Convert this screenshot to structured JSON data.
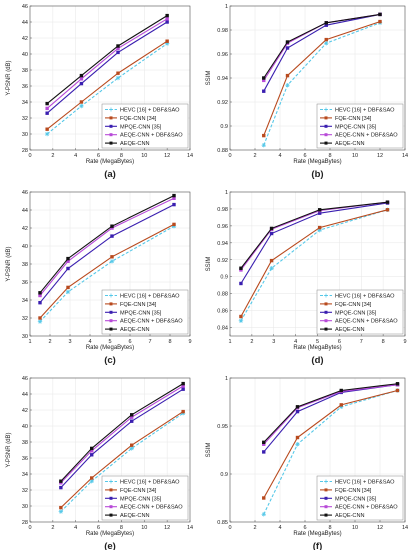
{
  "legend": [
    "HEVC [16] + DBF&SAO",
    "FQE-CNN [34]",
    "MPQE-CNN [35]",
    "AEQE-CNN + DBF&SAO",
    "AEQE-CNN"
  ],
  "series_colors": [
    "#55c8e8",
    "#b84a1e",
    "#3a1fb0",
    "#b84ad8",
    "#111111"
  ],
  "series_styles": [
    "dashed",
    "solid",
    "solid",
    "solid",
    "solid"
  ],
  "series_markers": [
    "star",
    "square",
    "square",
    "square",
    "square"
  ],
  "chart_data": [
    {
      "id": "a",
      "panel_label": "(a)",
      "type": "line",
      "xlabel": "Rate (MegaBytes)",
      "ylabel": "Y-PSNR (dB)",
      "xlim": [
        0,
        14
      ],
      "ylim": [
        28,
        46
      ],
      "xticks": [
        0,
        2,
        4,
        6,
        8,
        10,
        12,
        14
      ],
      "yticks": [
        28,
        30,
        32,
        34,
        36,
        38,
        40,
        42,
        44,
        46
      ],
      "grid": true,
      "legend_position": "bottom-right",
      "series": [
        {
          "x": [
            1.5,
            4.5,
            7.7,
            12.0
          ],
          "y": [
            30.0,
            33.5,
            37.0,
            41.3
          ]
        },
        {
          "x": [
            1.5,
            4.5,
            7.7,
            12.0
          ],
          "y": [
            30.6,
            34.0,
            37.6,
            41.6
          ]
        },
        {
          "x": [
            1.5,
            4.5,
            7.7,
            12.0
          ],
          "y": [
            32.6,
            36.3,
            40.2,
            44.0
          ]
        },
        {
          "x": [
            1.5,
            4.5,
            7.7,
            12.0
          ],
          "y": [
            33.2,
            36.9,
            40.7,
            44.4
          ]
        },
        {
          "x": [
            1.5,
            4.5,
            7.7,
            12.0
          ],
          "y": [
            33.8,
            37.3,
            41.0,
            44.8
          ]
        }
      ]
    },
    {
      "id": "b",
      "panel_label": "(b)",
      "type": "line",
      "xlabel": "Rate (MegaBytes)",
      "ylabel": "SSIM",
      "xlim": [
        0,
        14
      ],
      "ylim": [
        0.88,
        1.0
      ],
      "xticks": [
        0,
        2,
        4,
        6,
        8,
        10,
        12,
        14
      ],
      "yticks": [
        0.88,
        0.9,
        0.92,
        0.94,
        0.96,
        0.98,
        1.0
      ],
      "ytick_labels": [
        "0.88",
        "0.9",
        "0.92",
        "0.94",
        "0.96",
        "0.98",
        "1"
      ],
      "grid": true,
      "legend_position": "bottom-right",
      "series": [
        {
          "x": [
            2.7,
            4.6,
            7.7,
            12.0
          ],
          "y": [
            0.884,
            0.934,
            0.969,
            0.986
          ]
        },
        {
          "x": [
            2.7,
            4.6,
            7.7,
            12.0
          ],
          "y": [
            0.892,
            0.942,
            0.972,
            0.987
          ]
        },
        {
          "x": [
            2.7,
            4.6,
            7.7,
            12.0
          ],
          "y": [
            0.929,
            0.965,
            0.984,
            0.993
          ]
        },
        {
          "x": [
            2.7,
            4.6,
            7.7,
            12.0
          ],
          "y": [
            0.938,
            0.969,
            0.986,
            0.993
          ]
        },
        {
          "x": [
            2.7,
            4.6,
            7.7,
            12.0
          ],
          "y": [
            0.94,
            0.97,
            0.986,
            0.993
          ]
        }
      ]
    },
    {
      "id": "c",
      "panel_label": "(c)",
      "type": "line",
      "xlabel": "Rate (MegaBytes)",
      "ylabel": "Y-PSNR (dB)",
      "xlim": [
        1,
        9
      ],
      "ylim": [
        30,
        46
      ],
      "xticks": [
        1,
        2,
        3,
        4,
        5,
        6,
        7,
        8,
        9
      ],
      "yticks": [
        30,
        32,
        34,
        36,
        38,
        40,
        42,
        44,
        46
      ],
      "grid": true,
      "legend_position": "bottom-right",
      "series": [
        {
          "x": [
            1.5,
            2.9,
            5.1,
            8.2
          ],
          "y": [
            31.6,
            34.9,
            38.3,
            42.2
          ]
        },
        {
          "x": [
            1.5,
            2.9,
            5.1,
            8.2
          ],
          "y": [
            32.0,
            35.4,
            38.8,
            42.4
          ]
        },
        {
          "x": [
            1.5,
            2.9,
            5.1,
            8.2
          ],
          "y": [
            33.7,
            37.5,
            41.1,
            44.6
          ]
        },
        {
          "x": [
            1.5,
            2.9,
            5.1,
            8.2
          ],
          "y": [
            34.5,
            38.3,
            42.0,
            45.3
          ]
        },
        {
          "x": [
            1.5,
            2.9,
            5.1,
            8.2
          ],
          "y": [
            34.8,
            38.6,
            42.2,
            45.6
          ]
        }
      ]
    },
    {
      "id": "d",
      "panel_label": "(d)",
      "type": "line",
      "xlabel": "Rate (MegaBytes)",
      "ylabel": "SSIM",
      "xlim": [
        1,
        9
      ],
      "ylim": [
        0.83,
        1.0
      ],
      "xticks": [
        1,
        2,
        3,
        4,
        5,
        6,
        7,
        8,
        9
      ],
      "yticks": [
        0.84,
        0.86,
        0.88,
        0.9,
        0.92,
        0.94,
        0.96,
        0.98,
        1.0
      ],
      "ytick_labels": [
        "0.84",
        "0.86",
        "0.88",
        "0.9",
        "0.92",
        "0.94",
        "0.96",
        "0.98",
        "1"
      ],
      "grid": true,
      "legend_position": "bottom-right",
      "series": [
        {
          "x": [
            1.5,
            2.9,
            5.1,
            8.2
          ],
          "y": [
            0.848,
            0.91,
            0.955,
            0.979
          ]
        },
        {
          "x": [
            1.5,
            2.9,
            5.1,
            8.2
          ],
          "y": [
            0.853,
            0.919,
            0.958,
            0.979
          ]
        },
        {
          "x": [
            1.5,
            2.9,
            5.1,
            8.2
          ],
          "y": [
            0.892,
            0.951,
            0.975,
            0.987
          ]
        },
        {
          "x": [
            1.5,
            2.9,
            5.1,
            8.2
          ],
          "y": [
            0.908,
            0.956,
            0.978,
            0.988
          ]
        },
        {
          "x": [
            1.5,
            2.9,
            5.1,
            8.2
          ],
          "y": [
            0.91,
            0.957,
            0.979,
            0.988
          ]
        }
      ]
    },
    {
      "id": "e",
      "panel_label": "(e)",
      "type": "line",
      "xlabel": "Rate (MegaBytes)",
      "ylabel": "Y-PSNR (dB)",
      "xlim": [
        0,
        14
      ],
      "ylim": [
        28,
        46
      ],
      "xticks": [
        0,
        2,
        4,
        6,
        8,
        10,
        12,
        14
      ],
      "yticks": [
        28,
        30,
        32,
        34,
        36,
        38,
        40,
        42,
        44,
        46
      ],
      "grid": true,
      "legend_position": "bottom-right",
      "series": [
        {
          "x": [
            2.7,
            5.4,
            8.9,
            13.4
          ],
          "y": [
            29.3,
            33.1,
            37.2,
            41.6
          ]
        },
        {
          "x": [
            2.7,
            5.4,
            8.9,
            13.4
          ],
          "y": [
            29.8,
            33.5,
            37.6,
            41.8
          ]
        },
        {
          "x": [
            2.7,
            5.4,
            8.9,
            13.4
          ],
          "y": [
            32.3,
            36.4,
            40.6,
            44.6
          ]
        },
        {
          "x": [
            2.7,
            5.4,
            8.9,
            13.4
          ],
          "y": [
            32.9,
            36.9,
            41.1,
            45.0
          ]
        },
        {
          "x": [
            2.7,
            5.4,
            8.9,
            13.4
          ],
          "y": [
            33.1,
            37.2,
            41.4,
            45.3
          ]
        }
      ]
    },
    {
      "id": "f",
      "panel_label": "(f)",
      "type": "line",
      "xlabel": "Rate (MegaBytes)",
      "ylabel": "SSIM",
      "xlim": [
        0,
        14
      ],
      "ylim": [
        0.85,
        1.0
      ],
      "xticks": [
        0,
        2,
        4,
        6,
        8,
        10,
        12,
        14
      ],
      "yticks": [
        0.85,
        0.9,
        0.95,
        1.0
      ],
      "ytick_labels": [
        "0.85",
        "0.9",
        "0.95",
        "1"
      ],
      "grid": true,
      "legend_position": "bottom-right",
      "series": [
        {
          "x": [
            2.7,
            5.4,
            8.9,
            13.4
          ],
          "y": [
            0.858,
            0.931,
            0.97,
            0.987
          ]
        },
        {
          "x": [
            2.7,
            5.4,
            8.9,
            13.4
          ],
          "y": [
            0.875,
            0.938,
            0.972,
            0.987
          ]
        },
        {
          "x": [
            2.7,
            5.4,
            8.9,
            13.4
          ],
          "y": [
            0.923,
            0.965,
            0.985,
            0.993
          ]
        },
        {
          "x": [
            2.7,
            5.4,
            8.9,
            13.4
          ],
          "y": [
            0.931,
            0.969,
            0.986,
            0.993
          ]
        },
        {
          "x": [
            2.7,
            5.4,
            8.9,
            13.4
          ],
          "y": [
            0.933,
            0.97,
            0.987,
            0.994
          ]
        }
      ]
    }
  ]
}
